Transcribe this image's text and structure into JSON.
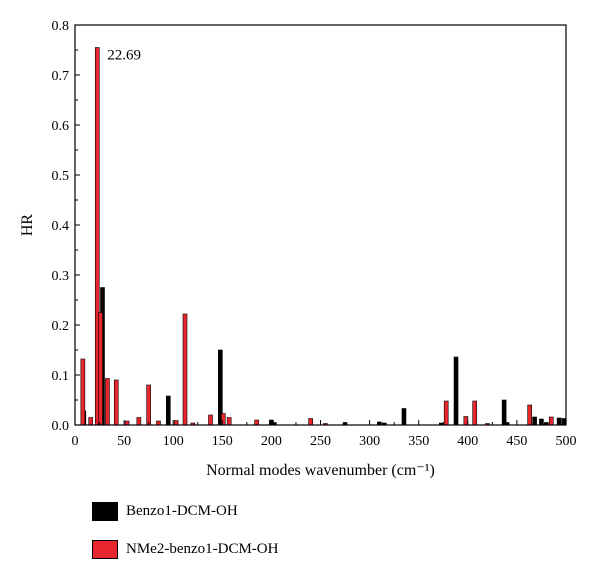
{
  "chart_data": {
    "type": "bar",
    "xlabel": "Normal modes wavenumber (cm⁻¹)",
    "ylabel": "HR",
    "xlim": [
      0,
      500
    ],
    "ylim": [
      0,
      0.8
    ],
    "xticks": [
      "0",
      "50",
      "100",
      "150",
      "200",
      "250",
      "300",
      "350",
      "400",
      "450",
      "500"
    ],
    "yticks": [
      "0.0",
      "0.1",
      "0.2",
      "0.3",
      "0.4",
      "0.5",
      "0.6",
      "0.7",
      "0.8"
    ],
    "grid": false,
    "legend_position": "bottom-left, below plot",
    "annotation": {
      "text": "22.69",
      "x": 22.69,
      "y": 0.755
    },
    "series": [
      {
        "name": "Benzo1-DCM-OH",
        "color": "#000000",
        "points": [
          {
            "x": 9,
            "y": 0.028
          },
          {
            "x": 28,
            "y": 0.275
          },
          {
            "x": 95,
            "y": 0.058
          },
          {
            "x": 148,
            "y": 0.15
          },
          {
            "x": 200,
            "y": 0.01
          },
          {
            "x": 203,
            "y": 0.005
          },
          {
            "x": 275,
            "y": 0.005
          },
          {
            "x": 310,
            "y": 0.006
          },
          {
            "x": 315,
            "y": 0.004
          },
          {
            "x": 335,
            "y": 0.033
          },
          {
            "x": 373,
            "y": 0.004
          },
          {
            "x": 388,
            "y": 0.136
          },
          {
            "x": 437,
            "y": 0.05
          },
          {
            "x": 440,
            "y": 0.005
          },
          {
            "x": 468,
            "y": 0.016
          },
          {
            "x": 475,
            "y": 0.012
          },
          {
            "x": 480,
            "y": 0.005
          },
          {
            "x": 493,
            "y": 0.014
          },
          {
            "x": 498,
            "y": 0.013
          }
        ]
      },
      {
        "name": "NMe2-benzo1-DCM-OH",
        "color": "#e8262d",
        "points": [
          {
            "x": 8,
            "y": 0.132
          },
          {
            "x": 16,
            "y": 0.015
          },
          {
            "x": 22.69,
            "y": 0.755
          },
          {
            "x": 26,
            "y": 0.225
          },
          {
            "x": 33,
            "y": 0.093
          },
          {
            "x": 42,
            "y": 0.09
          },
          {
            "x": 53,
            "y": 0.008
          },
          {
            "x": 65,
            "y": 0.015
          },
          {
            "x": 75,
            "y": 0.08
          },
          {
            "x": 85,
            "y": 0.008
          },
          {
            "x": 103,
            "y": 0.009
          },
          {
            "x": 112,
            "y": 0.222
          },
          {
            "x": 120,
            "y": 0.004
          },
          {
            "x": 138,
            "y": 0.02
          },
          {
            "x": 151,
            "y": 0.023
          },
          {
            "x": 157,
            "y": 0.015
          },
          {
            "x": 185,
            "y": 0.01
          },
          {
            "x": 240,
            "y": 0.013
          },
          {
            "x": 255,
            "y": 0.003
          },
          {
            "x": 378,
            "y": 0.048
          },
          {
            "x": 398,
            "y": 0.017
          },
          {
            "x": 407,
            "y": 0.048
          },
          {
            "x": 420,
            "y": 0.003
          },
          {
            "x": 463,
            "y": 0.04
          },
          {
            "x": 485,
            "y": 0.016
          }
        ]
      }
    ]
  }
}
